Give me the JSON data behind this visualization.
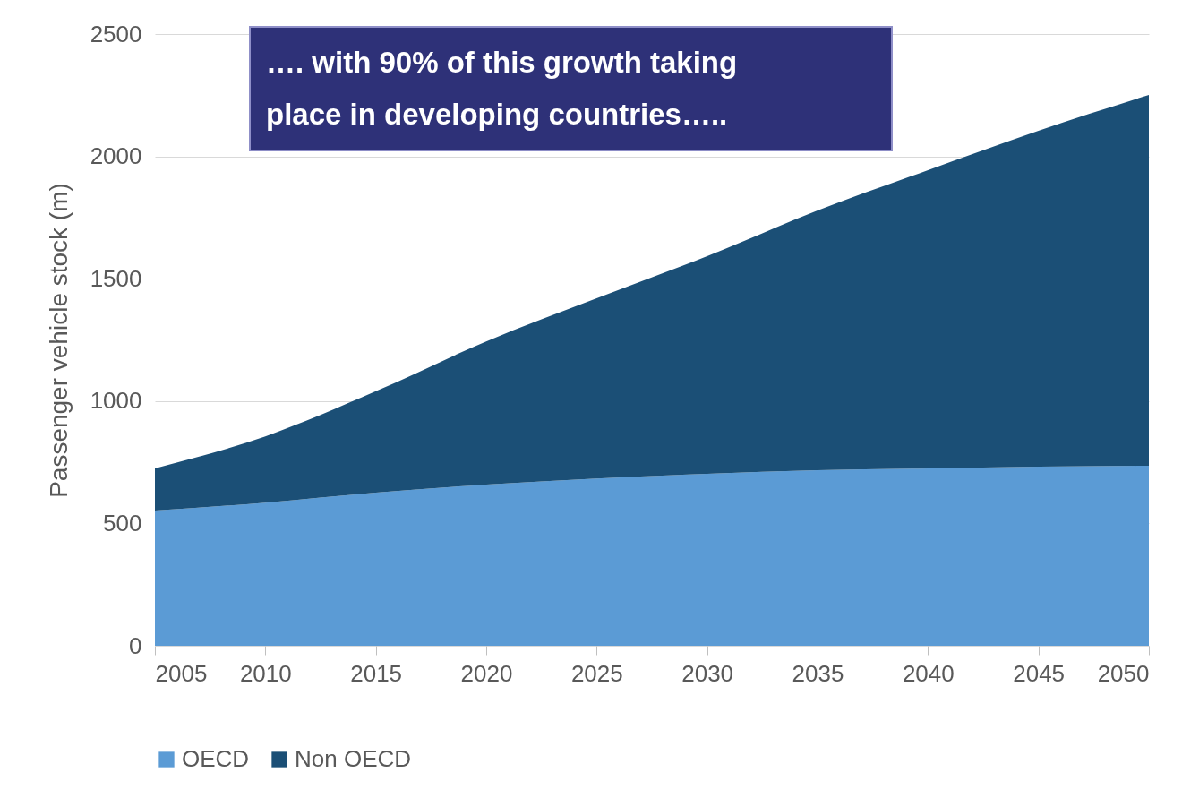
{
  "chart_data": {
    "type": "area",
    "stacked": true,
    "ylabel": "Passenger vehicle stock (m)",
    "x": [
      2005,
      2010,
      2015,
      2020,
      2025,
      2030,
      2035,
      2040,
      2045,
      2050
    ],
    "series": [
      {
        "name": "OECD",
        "color": "#5b9bd5",
        "values": [
          553,
          585,
          626,
          659,
          684,
          703,
          717,
          725,
          732,
          736
        ]
      },
      {
        "name": "Non OECD",
        "color": "#1b4f76",
        "values": [
          172,
          271,
          414,
          585,
          736,
          889,
          1062,
          1219,
          1373,
          1515
        ]
      }
    ],
    "xlim": [
      2005,
      2050
    ],
    "xticks": [
      2005,
      2010,
      2015,
      2020,
      2025,
      2030,
      2035,
      2040,
      2045,
      2050
    ],
    "ylim": [
      0,
      2500
    ],
    "yticks": [
      0,
      500,
      1000,
      1500,
      2000,
      2500
    ],
    "grid": "y",
    "legend": "bottom",
    "annotations": [
      "…. with 90% of this growth taking place in developing countries….."
    ]
  }
}
